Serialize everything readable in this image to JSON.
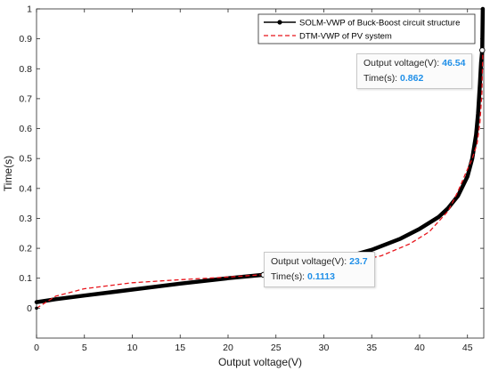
{
  "chart_data": {
    "type": "line",
    "xlabel": "Output voltage(V)",
    "ylabel": "Time(s)",
    "xlim": [
      0,
      46.7
    ],
    "ylim": [
      -0.1,
      1
    ],
    "xticks": [
      "0",
      "5",
      "10",
      "15",
      "20",
      "25",
      "30",
      "35",
      "40",
      "45"
    ],
    "yticks": [
      "0",
      "0.1",
      "0.2",
      "0.3",
      "0.4",
      "0.5",
      "0.6",
      "0.7",
      "0.8",
      "0.9",
      "1"
    ],
    "legend_position": "top-right",
    "grid": false,
    "series": [
      {
        "name": "SOLM-VWP of Buck-Boost circuit structure",
        "color": "#000000",
        "style": "solid-thick",
        "x": [
          0,
          2,
          5,
          10,
          15,
          20,
          23.7,
          28,
          32,
          35,
          38,
          40,
          42,
          43,
          44,
          45,
          45.5,
          45.9,
          46.1,
          46.3,
          46.42,
          46.54,
          46.6
        ],
        "y": [
          0.02,
          0.03,
          0.042,
          0.062,
          0.082,
          0.1,
          0.1113,
          0.138,
          0.168,
          0.195,
          0.232,
          0.265,
          0.305,
          0.335,
          0.375,
          0.44,
          0.5,
          0.58,
          0.65,
          0.75,
          0.82,
          0.862,
          1.0
        ]
      },
      {
        "name": "DTM-VWP of PV system",
        "color": "#e8141b",
        "style": "dashed",
        "x": [
          0,
          2,
          5,
          10,
          15,
          20,
          23.7,
          28,
          32,
          36,
          39,
          41,
          43,
          44,
          44.8,
          45.5,
          46,
          46.3,
          46.5,
          46.6
        ],
        "y": [
          0.0,
          0.04,
          0.065,
          0.085,
          0.095,
          0.104,
          0.112,
          0.127,
          0.148,
          0.175,
          0.215,
          0.255,
          0.325,
          0.39,
          0.45,
          0.5,
          0.55,
          0.62,
          0.72,
          0.85
        ]
      }
    ],
    "datatips": [
      {
        "x_label": "Output voltage(V):",
        "x_value": "23.7",
        "y_label": "Time(s):",
        "y_value": "0.1113",
        "x": 23.7,
        "y": 0.1113
      },
      {
        "x_label": "Output voltage(V):",
        "x_value": "46.54",
        "y_label": "Time(s):",
        "y_value": "0.862",
        "x": 46.54,
        "y": 0.862
      }
    ]
  }
}
